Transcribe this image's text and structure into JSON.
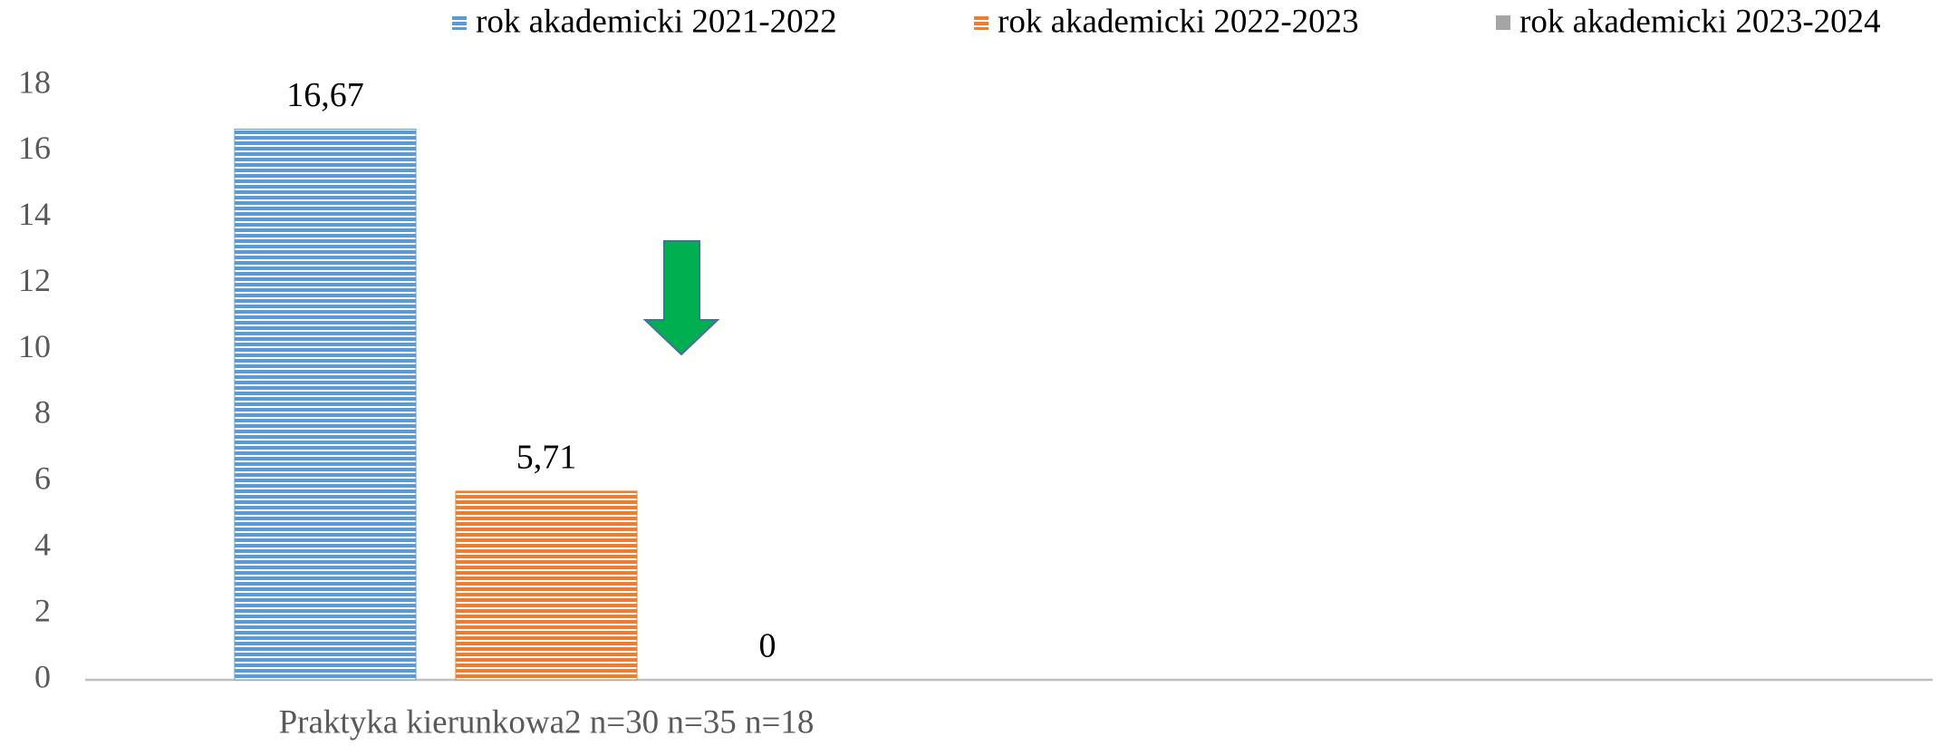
{
  "chart_data": {
    "type": "bar",
    "categories": [
      "Praktyka kierunkowa2 n=30 n=35 n=18"
    ],
    "series": [
      {
        "name": "rok akademicki 2021-2022",
        "color": "#5b9bd5",
        "values": [
          16.67
        ],
        "value_labels": [
          "16,67"
        ]
      },
      {
        "name": "rok akademicki 2022-2023",
        "color": "#ed7d31",
        "values": [
          5.71
        ],
        "value_labels": [
          "5,71"
        ]
      },
      {
        "name": "rok akademicki 2023-2024",
        "color": "#a5a5a5",
        "values": [
          0
        ],
        "value_labels": [
          "0"
        ]
      }
    ],
    "ylim": [
      0,
      18
    ],
    "yticks": [
      0,
      2,
      4,
      6,
      8,
      10,
      12,
      14,
      16,
      18
    ],
    "grid": false,
    "legend": "top"
  }
}
